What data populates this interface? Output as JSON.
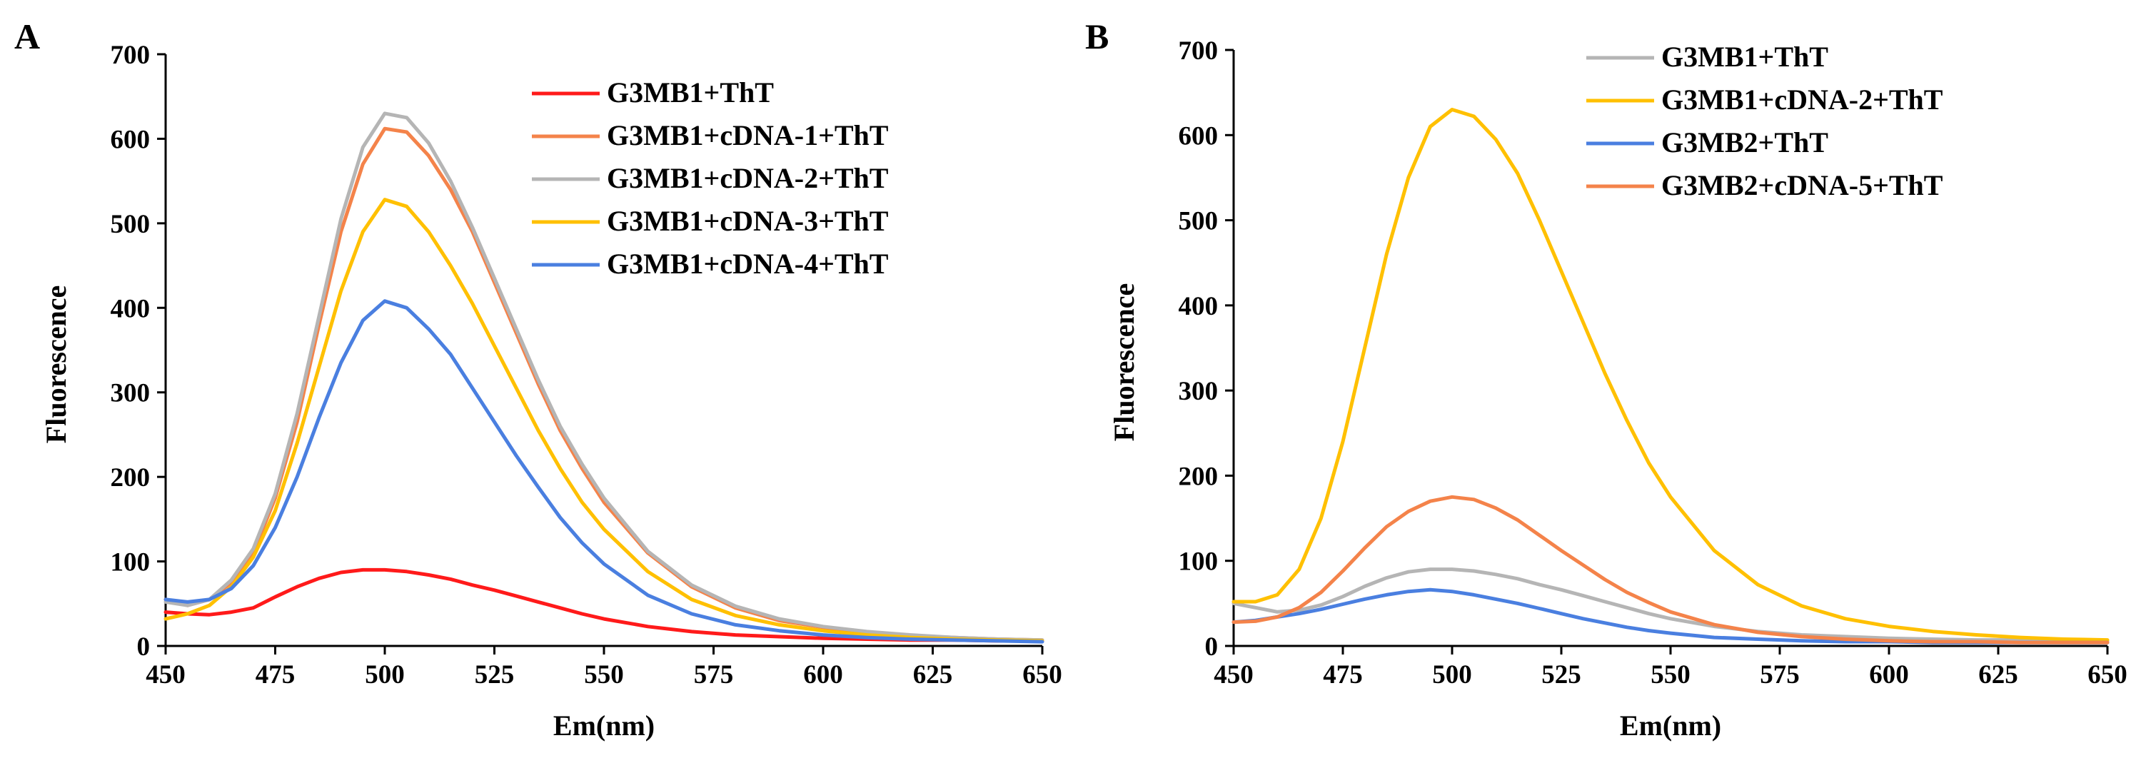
{
  "chart_data": [
    {
      "id": "A",
      "type": "line",
      "panel_label": "A",
      "xlabel": "Em(nm)",
      "ylabel": "Fluorescence",
      "xlim": [
        450,
        650
      ],
      "ylim": [
        0,
        700
      ],
      "xticks": [
        450,
        475,
        500,
        525,
        550,
        575,
        600,
        625,
        650
      ],
      "yticks": [
        0,
        100,
        200,
        300,
        400,
        500,
        600,
        700
      ],
      "grid": false,
      "legend_position": "top-right",
      "series": [
        {
          "name": "G3MB1+ThT",
          "color": "#ff1a1a",
          "x": [
            450,
            455,
            460,
            465,
            470,
            475,
            480,
            485,
            490,
            495,
            500,
            505,
            510,
            515,
            520,
            525,
            530,
            535,
            540,
            545,
            550,
            560,
            570,
            580,
            590,
            600,
            610,
            620,
            630,
            640,
            650
          ],
          "y": [
            40,
            38,
            37,
            40,
            45,
            58,
            70,
            80,
            87,
            90,
            90,
            88,
            84,
            79,
            72,
            66,
            59,
            52,
            45,
            38,
            32,
            23,
            17,
            13,
            11,
            9,
            8,
            7,
            7,
            6,
            6
          ]
        },
        {
          "name": "G3MB1+cDNA-1+ThT",
          "color": "#f4834a",
          "x": [
            450,
            455,
            460,
            465,
            470,
            475,
            480,
            485,
            490,
            495,
            500,
            505,
            510,
            515,
            520,
            525,
            530,
            535,
            540,
            545,
            550,
            560,
            570,
            580,
            590,
            600,
            610,
            620,
            630,
            640,
            650
          ],
          "y": [
            55,
            48,
            55,
            75,
            110,
            175,
            265,
            380,
            490,
            570,
            612,
            608,
            580,
            540,
            490,
            430,
            370,
            310,
            255,
            210,
            170,
            110,
            70,
            45,
            30,
            22,
            16,
            12,
            10,
            8,
            7
          ]
        },
        {
          "name": "G3MB1+cDNA-2+ThT",
          "color": "#b5b5b5",
          "x": [
            450,
            455,
            460,
            465,
            470,
            475,
            480,
            485,
            490,
            495,
            500,
            505,
            510,
            515,
            520,
            525,
            530,
            535,
            540,
            545,
            550,
            560,
            570,
            580,
            590,
            600,
            610,
            620,
            630,
            640,
            650
          ],
          "y": [
            52,
            48,
            55,
            78,
            115,
            180,
            275,
            390,
            505,
            590,
            630,
            625,
            595,
            550,
            495,
            435,
            375,
            315,
            260,
            215,
            175,
            112,
            72,
            47,
            32,
            23,
            17,
            13,
            10,
            8,
            7
          ]
        },
        {
          "name": "G3MB1+cDNA-3+ThT",
          "color": "#ffc000",
          "x": [
            450,
            455,
            460,
            465,
            470,
            475,
            480,
            485,
            490,
            495,
            500,
            505,
            510,
            515,
            520,
            525,
            530,
            535,
            540,
            545,
            550,
            560,
            570,
            580,
            590,
            600,
            610,
            620,
            630,
            640,
            650
          ],
          "y": [
            32,
            38,
            48,
            70,
            105,
            160,
            240,
            330,
            420,
            490,
            528,
            520,
            490,
            450,
            405,
            355,
            305,
            255,
            210,
            170,
            138,
            88,
            55,
            36,
            25,
            18,
            13,
            10,
            8,
            7,
            6
          ]
        },
        {
          "name": "G3MB1+cDNA-4+ThT",
          "color": "#4a7fe0",
          "x": [
            450,
            455,
            460,
            465,
            470,
            475,
            480,
            485,
            490,
            495,
            500,
            505,
            510,
            515,
            520,
            525,
            530,
            535,
            540,
            545,
            550,
            560,
            570,
            580,
            590,
            600,
            610,
            620,
            630,
            640,
            650
          ],
          "y": [
            55,
            52,
            55,
            68,
            95,
            140,
            200,
            270,
            335,
            385,
            408,
            400,
            375,
            345,
            305,
            265,
            225,
            188,
            152,
            122,
            97,
            60,
            38,
            25,
            18,
            13,
            10,
            8,
            7,
            6,
            5
          ]
        }
      ]
    },
    {
      "id": "B",
      "type": "line",
      "panel_label": "B",
      "xlabel": "Em(nm)",
      "ylabel": "Fluorescence",
      "xlim": [
        450,
        650
      ],
      "ylim": [
        0,
        700
      ],
      "xticks": [
        450,
        475,
        500,
        525,
        550,
        575,
        600,
        625,
        650
      ],
      "yticks": [
        0,
        100,
        200,
        300,
        400,
        500,
        600,
        700
      ],
      "grid": false,
      "legend_position": "top-right",
      "series": [
        {
          "name": "G3MB1+ThT",
          "color": "#b5b5b5",
          "x": [
            450,
            455,
            460,
            465,
            470,
            475,
            480,
            485,
            490,
            495,
            500,
            505,
            510,
            515,
            520,
            525,
            530,
            535,
            540,
            545,
            550,
            560,
            570,
            580,
            590,
            600,
            610,
            620,
            630,
            640,
            650
          ],
          "y": [
            50,
            45,
            40,
            42,
            48,
            58,
            70,
            80,
            87,
            90,
            90,
            88,
            84,
            79,
            72,
            66,
            59,
            52,
            45,
            38,
            32,
            23,
            17,
            13,
            11,
            9,
            8,
            7,
            7,
            6,
            6
          ]
        },
        {
          "name": "G3MB1+cDNA-2+ThT",
          "color": "#ffc000",
          "x": [
            450,
            455,
            460,
            465,
            470,
            475,
            480,
            485,
            490,
            495,
            500,
            505,
            510,
            515,
            520,
            525,
            530,
            535,
            540,
            545,
            550,
            560,
            570,
            580,
            590,
            600,
            610,
            620,
            630,
            640,
            650
          ],
          "y": [
            52,
            52,
            60,
            90,
            150,
            240,
            350,
            460,
            550,
            610,
            630,
            622,
            595,
            555,
            500,
            440,
            380,
            320,
            265,
            215,
            175,
            112,
            72,
            47,
            32,
            23,
            17,
            13,
            10,
            8,
            7
          ]
        },
        {
          "name": "G3MB2+ThT",
          "color": "#4a7fe0",
          "x": [
            450,
            455,
            460,
            465,
            470,
            475,
            480,
            485,
            490,
            495,
            500,
            505,
            510,
            515,
            520,
            525,
            530,
            535,
            540,
            545,
            550,
            560,
            570,
            580,
            590,
            600,
            610,
            620,
            630,
            640,
            650
          ],
          "y": [
            28,
            30,
            34,
            38,
            43,
            49,
            55,
            60,
            64,
            66,
            64,
            60,
            55,
            50,
            44,
            38,
            32,
            27,
            22,
            18,
            15,
            10,
            8,
            6,
            5,
            5,
            4,
            4,
            4,
            4,
            4
          ]
        },
        {
          "name": "G3MB2+cDNA-5+ThT",
          "color": "#f4834a",
          "x": [
            450,
            455,
            460,
            465,
            470,
            475,
            480,
            485,
            490,
            495,
            500,
            505,
            510,
            515,
            520,
            525,
            530,
            535,
            540,
            545,
            550,
            560,
            570,
            580,
            590,
            600,
            610,
            620,
            630,
            640,
            650
          ],
          "y": [
            28,
            29,
            34,
            45,
            63,
            88,
            115,
            140,
            158,
            170,
            175,
            172,
            162,
            148,
            130,
            112,
            95,
            78,
            63,
            51,
            40,
            25,
            16,
            11,
            8,
            6,
            5,
            5,
            4,
            4,
            4
          ]
        }
      ]
    }
  ]
}
